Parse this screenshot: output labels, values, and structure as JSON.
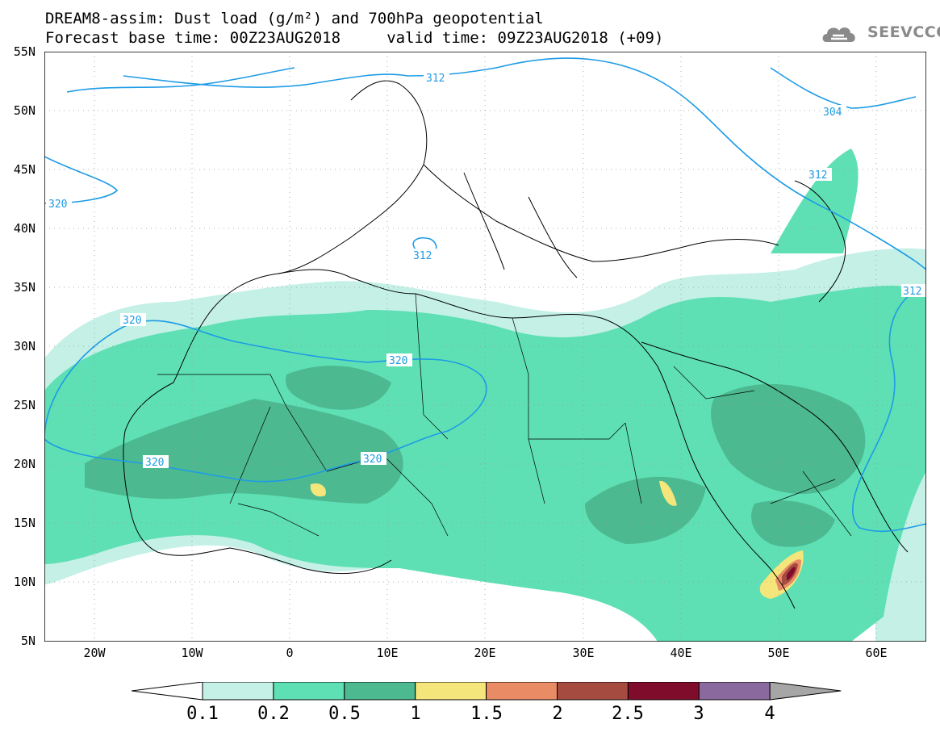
{
  "header": {
    "title_line1": "DREAM8-assim: Dust load (g/m²) and 700hPa geopotential",
    "title_line2": "Forecast base time: 00Z23AUG2018     valid time: 09Z23AUG2018 (+09)",
    "logo_text": "SEEVCCC"
  },
  "axes": {
    "lat_labels": [
      "55N",
      "50N",
      "45N",
      "40N",
      "35N",
      "30N",
      "25N",
      "20N",
      "15N",
      "10N",
      "5N"
    ],
    "lon_labels": [
      "20W",
      "10W",
      "0",
      "10E",
      "20E",
      "30E",
      "40E",
      "50E",
      "60E"
    ]
  },
  "contours": {
    "labels": [
      "312",
      "304",
      "312",
      "320",
      "312",
      "320",
      "320",
      "320",
      "320",
      "312"
    ]
  },
  "colorbar": {
    "levels": [
      "0.1",
      "0.2",
      "0.5",
      "1",
      "1.5",
      "2",
      "2.5",
      "3",
      "4"
    ],
    "colors": [
      "#c4f0e6",
      "#5ee0b4",
      "#4cb991",
      "#f4e67a",
      "#e98c66",
      "#a64b40",
      "#800c2c",
      "#8a6a9e"
    ],
    "under_color": "#ffffff",
    "over_color": "#a6a6a6"
  }
}
